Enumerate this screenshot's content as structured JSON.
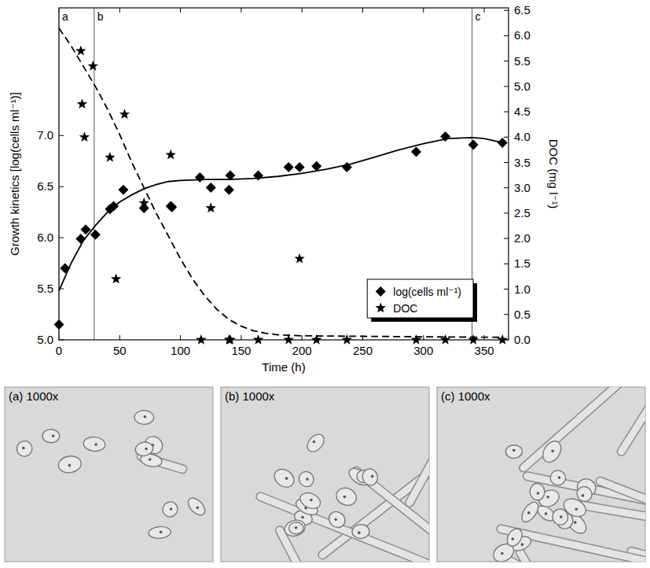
{
  "chart_data": {
    "type": "scatter",
    "xlabel": "Time (h)",
    "ylabel": "Growth kinetics [log(cells ml⁻¹)]",
    "y2label": "DOC (mg l⁻¹)",
    "xlim": [
      0,
      370
    ],
    "xticks": [
      0,
      50,
      100,
      150,
      200,
      250,
      300,
      350
    ],
    "ylim": [
      5.0,
      8.25
    ],
    "yticks": [
      {
        "value": 5.0,
        "label": "5.0"
      },
      5.5,
      {
        "value": 6.0,
        "label": "6.0"
      },
      6.5,
      {
        "value": 7.0,
        "label": "7.0"
      }
    ],
    "y2lim": [
      0.0,
      6.55
    ],
    "y2ticks": [
      {
        "value": 0.0,
        "label": "0.0"
      },
      0.5,
      {
        "value": 1.0,
        "label": "1.0"
      },
      1.5,
      {
        "value": 2.0,
        "label": "2.0"
      },
      2.5,
      {
        "value": 3.0,
        "label": "3.0"
      },
      3.5,
      {
        "value": 4.0,
        "label": "4.0"
      },
      4.5,
      {
        "value": 5.0,
        "label": "5.0"
      },
      5.5,
      {
        "value": 6.0,
        "label": "6.0"
      },
      6.5
    ],
    "grid": false,
    "legend": "lower right",
    "series": [
      {
        "name": "log(cells ml⁻¹)",
        "type": "scatter",
        "marker": "diamond",
        "color": "#000000",
        "x": [
          0,
          5,
          18,
          22,
          30,
          42,
          45,
          53,
          70,
          92,
          93,
          116,
          125,
          140,
          141,
          164,
          189,
          198,
          212,
          237,
          294,
          318,
          341,
          365
        ],
        "values": [
          5.15,
          5.7,
          5.99,
          6.08,
          6.03,
          6.28,
          6.31,
          6.47,
          6.29,
          6.31,
          6.3,
          6.59,
          6.49,
          6.47,
          6.61,
          6.61,
          6.69,
          6.69,
          6.7,
          6.69,
          6.84,
          6.99,
          6.91,
          6.93
        ]
      },
      {
        "name": "DOC",
        "type": "scatter",
        "marker": "star",
        "color": "#000000",
        "axis": "y2",
        "x": [
          18,
          19,
          21,
          28,
          42,
          47,
          54,
          70,
          92,
          117,
          125,
          140,
          141,
          164,
          189,
          198,
          212,
          237,
          294,
          318,
          341,
          365
        ],
        "values": [
          5.7,
          4.65,
          4.0,
          5.4,
          3.6,
          1.2,
          4.45,
          2.7,
          3.65,
          0.0,
          2.6,
          0.0,
          0.0,
          0.0,
          0.0,
          1.6,
          0.0,
          0.0,
          0.0,
          0.0,
          0.0,
          0.0
        ]
      },
      {
        "type": "line",
        "line_style": "solid",
        "color": "#000000",
        "x": [
          0,
          10,
          20,
          30,
          40,
          50,
          60,
          70,
          80,
          90,
          100,
          120,
          140,
          160,
          180,
          200,
          220,
          240,
          260,
          280,
          300,
          320,
          340,
          350,
          365
        ],
        "values": [
          5.48,
          5.75,
          5.97,
          6.12,
          6.25,
          6.35,
          6.42,
          6.48,
          6.52,
          6.55,
          6.56,
          6.57,
          6.57,
          6.58,
          6.6,
          6.63,
          6.67,
          6.72,
          6.79,
          6.86,
          6.92,
          6.97,
          6.98,
          6.97,
          6.93
        ]
      },
      {
        "type": "line",
        "line_style": "dashed",
        "color": "#000000",
        "axis": "y2",
        "x": [
          0,
          10,
          20,
          30,
          40,
          50,
          60,
          70,
          80,
          90,
          100,
          110,
          120,
          130,
          140,
          150,
          160,
          170,
          180,
          200,
          250,
          300,
          365
        ],
        "values": [
          6.15,
          5.8,
          5.4,
          5.0,
          4.55,
          4.05,
          3.5,
          3.0,
          2.5,
          2.05,
          1.6,
          1.2,
          0.87,
          0.6,
          0.4,
          0.27,
          0.18,
          0.13,
          0.1,
          0.08,
          0.07,
          0.06,
          0.05
        ]
      }
    ],
    "annotations": [
      {
        "x": 0,
        "label": "a"
      },
      {
        "x": 29,
        "label": "b"
      },
      {
        "x": 340,
        "label": "c"
      }
    ]
  },
  "micrographs": [
    "(a) 1000x",
    "(b) 1000x",
    "(c) 1000x"
  ]
}
